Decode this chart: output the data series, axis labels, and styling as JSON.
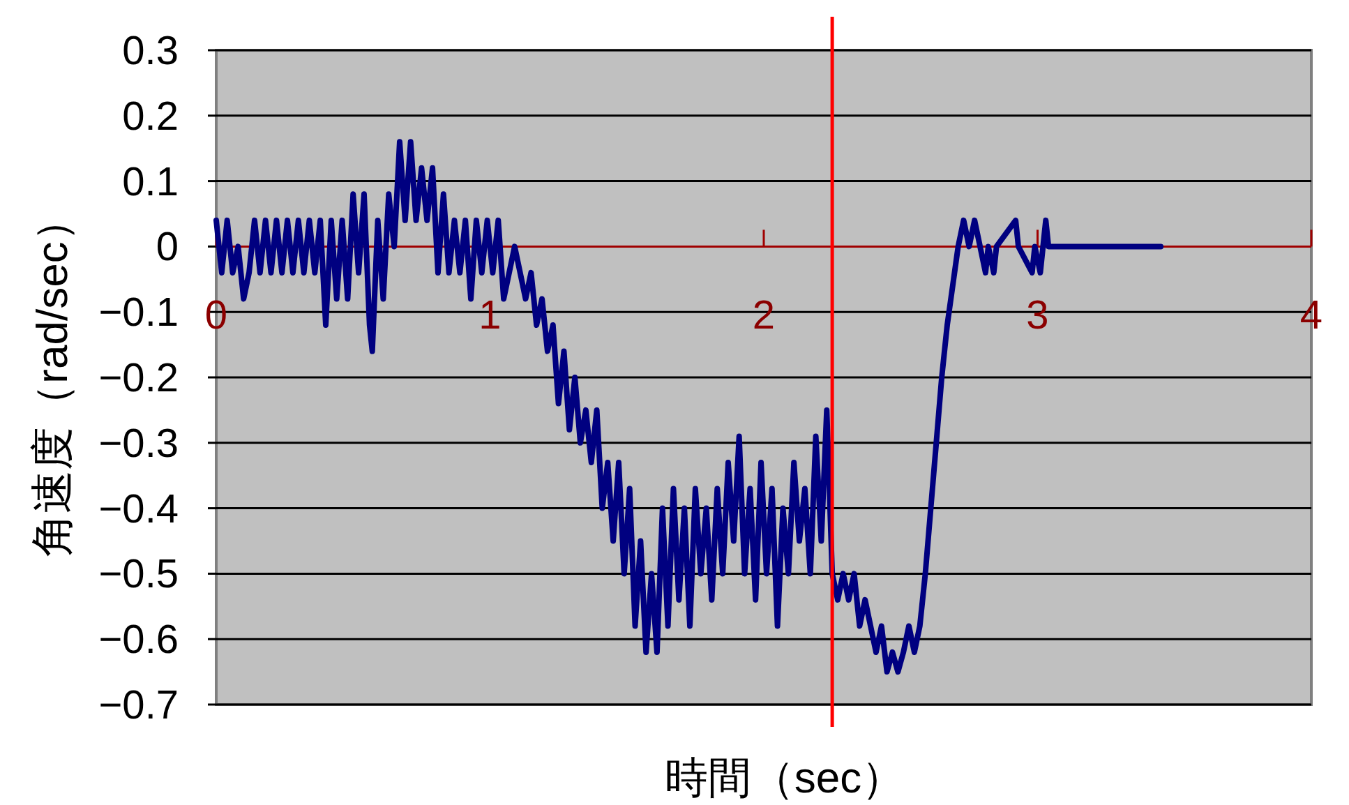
{
  "chart_data": {
    "type": "line",
    "xlabel": "時間（sec）",
    "ylabel": "角速度（rad/sec）",
    "xlim": [
      0,
      4
    ],
    "ylim": [
      -0.7,
      0.3
    ],
    "xticks": [
      0,
      1,
      2,
      3,
      4
    ],
    "yticks": [
      0.3,
      0.2,
      0.1,
      0,
      {
        "value": -0.1,
        "label": "−0.1"
      },
      {
        "value": -0.2,
        "label": "−0.2"
      },
      {
        "value": -0.3,
        "label": "−0.3"
      },
      {
        "value": -0.4,
        "label": "−0.4"
      },
      {
        "value": -0.5,
        "label": "−0.5"
      },
      {
        "value": -0.6,
        "label": "−0.6"
      },
      {
        "value": -0.7,
        "label": "−0.7"
      }
    ],
    "grid": "y",
    "ref_lines": [
      {
        "axis": "x",
        "value": 2.25,
        "color": "#ff0000"
      }
    ],
    "series": [
      {
        "color": "#000080",
        "x": [
          0,
          0.02,
          0.04,
          0.06,
          0.08,
          0.1,
          0.12,
          0.14,
          0.16,
          0.18,
          0.2,
          0.22,
          0.24,
          0.26,
          0.28,
          0.3,
          0.32,
          0.34,
          0.36,
          0.38,
          0.4,
          0.42,
          0.44,
          0.46,
          0.48,
          0.5,
          0.52,
          0.54,
          0.56,
          0.57,
          0.59,
          0.61,
          0.63,
          0.65,
          0.67,
          0.69,
          0.71,
          0.73,
          0.75,
          0.77,
          0.79,
          0.81,
          0.83,
          0.85,
          0.87,
          0.89,
          0.91,
          0.93,
          0.95,
          0.97,
          0.99,
          1.01,
          1.03,
          1.05,
          1.07,
          1.09,
          1.11,
          1.13,
          1.15,
          1.17,
          1.19,
          1.21,
          1.23,
          1.25,
          1.27,
          1.29,
          1.31,
          1.33,
          1.35,
          1.37,
          1.39,
          1.41,
          1.43,
          1.45,
          1.47,
          1.49,
          1.51,
          1.53,
          1.55,
          1.57,
          1.59,
          1.61,
          1.63,
          1.65,
          1.67,
          1.69,
          1.71,
          1.73,
          1.75,
          1.77,
          1.79,
          1.81,
          1.83,
          1.85,
          1.87,
          1.89,
          1.91,
          1.93,
          1.95,
          1.97,
          1.99,
          2.01,
          2.03,
          2.05,
          2.07,
          2.09,
          2.11,
          2.13,
          2.15,
          2.17,
          2.19,
          2.21,
          2.23,
          2.25,
          2.27,
          2.29,
          2.31,
          2.33,
          2.35,
          2.37,
          2.39,
          2.41,
          2.43,
          2.45,
          2.47,
          2.49,
          2.51,
          2.53,
          2.55,
          2.57,
          2.59,
          2.61,
          2.63,
          2.65,
          2.67,
          2.69,
          2.71,
          2.73,
          2.75,
          2.77,
          2.79,
          2.81,
          2.82,
          2.84,
          2.85,
          2.92,
          2.93,
          2.98,
          2.99,
          3.01,
          3.02,
          3.03,
          3.04,
          3.45
        ],
        "values": [
          0.04,
          -0.04,
          0.04,
          -0.04,
          0,
          -0.08,
          -0.04,
          0.04,
          -0.04,
          0.04,
          -0.04,
          0.04,
          -0.04,
          0.04,
          -0.04,
          0.04,
          -0.04,
          0.04,
          -0.04,
          0.04,
          -0.12,
          0.04,
          -0.08,
          0.04,
          -0.08,
          0.08,
          -0.04,
          0.08,
          -0.12,
          -0.16,
          0.04,
          -0.08,
          0.08,
          0,
          0.16,
          0.04,
          0.16,
          0.04,
          0.12,
          0.04,
          0.12,
          -0.04,
          0.08,
          -0.04,
          0.04,
          -0.04,
          0.04,
          -0.08,
          0.04,
          -0.04,
          0.04,
          -0.04,
          0.04,
          -0.08,
          -0.04,
          0,
          -0.04,
          -0.08,
          -0.04,
          -0.12,
          -0.08,
          -0.16,
          -0.12,
          -0.24,
          -0.16,
          -0.28,
          -0.2,
          -0.3,
          -0.25,
          -0.33,
          -0.25,
          -0.4,
          -0.33,
          -0.45,
          -0.33,
          -0.5,
          -0.37,
          -0.58,
          -0.45,
          -0.62,
          -0.5,
          -0.62,
          -0.4,
          -0.58,
          -0.37,
          -0.54,
          -0.4,
          -0.58,
          -0.37,
          -0.5,
          -0.4,
          -0.54,
          -0.37,
          -0.5,
          -0.33,
          -0.45,
          -0.29,
          -0.5,
          -0.37,
          -0.54,
          -0.33,
          -0.5,
          -0.37,
          -0.58,
          -0.4,
          -0.5,
          -0.33,
          -0.45,
          -0.37,
          -0.5,
          -0.29,
          -0.45,
          -0.25,
          -0.5,
          -0.54,
          -0.5,
          -0.54,
          -0.5,
          -0.58,
          -0.54,
          -0.58,
          -0.62,
          -0.58,
          -0.65,
          -0.62,
          -0.65,
          -0.62,
          -0.58,
          -0.62,
          -0.58,
          -0.5,
          -0.4,
          -0.3,
          -0.2,
          -0.12,
          -0.06,
          0,
          0.04,
          0,
          0.04,
          0,
          -0.04,
          0,
          -0.04,
          0,
          0.04,
          0,
          -0.04,
          0,
          -0.04,
          0,
          0.04,
          0,
          0
        ]
      }
    ]
  }
}
